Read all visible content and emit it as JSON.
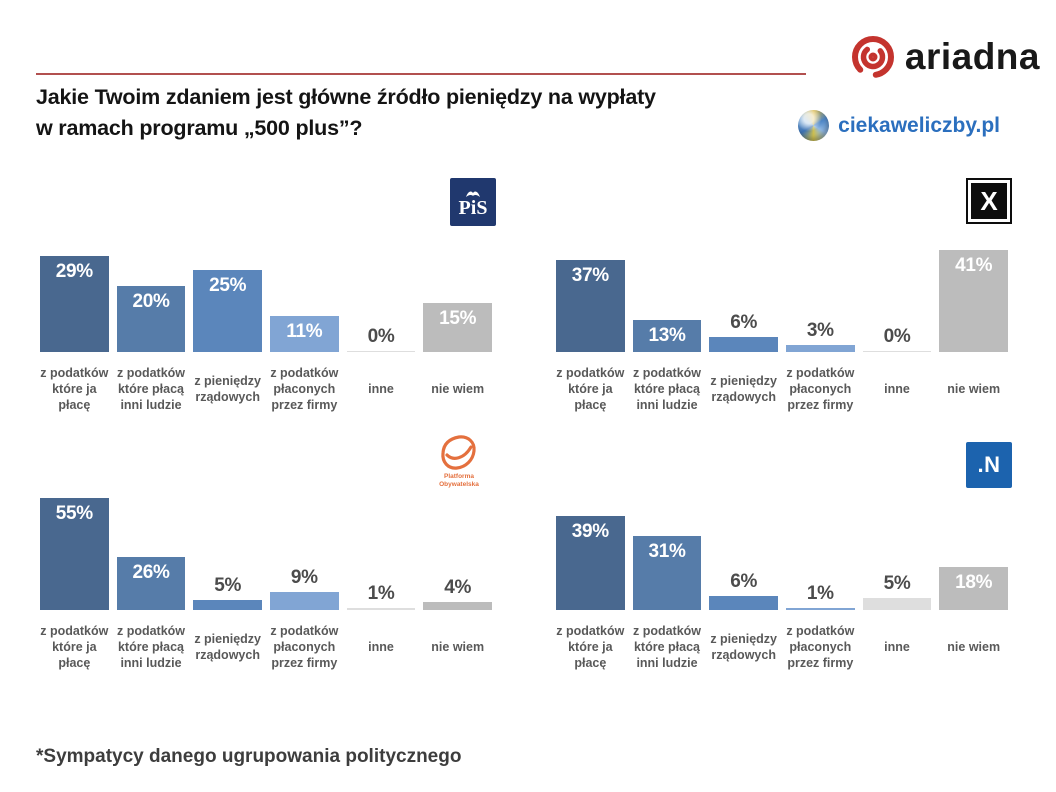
{
  "header": {
    "title": "Jakie Twoim zdaniem jest główne źródło pieniędzy na wypłaty\nw ramach programu „500 plus”?",
    "brand_ariadna": "ariadna",
    "brand_ciekaweliczby": "ciekaweliczby.pl"
  },
  "footnote": "*Sympatycy danego ugrupowania politycznego",
  "bar_colors": [
    "#49688f",
    "#567ca9",
    "#5b86bb",
    "#81a5d4",
    "#dedede",
    "#bcbcbc"
  ],
  "value_label_colors": {
    "inside": "#ffffff",
    "outside": "#4c4c4c"
  },
  "chart_data": [
    {
      "type": "bar",
      "party": "PiS",
      "logo_text": "PiS",
      "categories": [
        "z podatków\nktóre ja\npłacę",
        "z podatków\nktóre płacą\ninni ludzie",
        "z pieniędzy\nrządowych",
        "z podatków\npłaconych\nprzez firmy",
        "inne",
        "nie wiem"
      ],
      "values": [
        29,
        20,
        25,
        11,
        0,
        15
      ],
      "unit": "%"
    },
    {
      "type": "bar",
      "party": "Kukiz'15",
      "logo_text": "X",
      "categories": [
        "z podatków\nktóre ja\npłacę",
        "z podatków\nktóre płacą\ninni ludzie",
        "z pieniędzy\nrządowych",
        "z podatków\npłaconych\nprzez firmy",
        "inne",
        "nie wiem"
      ],
      "values": [
        37,
        13,
        6,
        3,
        0,
        41
      ],
      "unit": "%"
    },
    {
      "type": "bar",
      "party": "Platforma Obywatelska",
      "logo_text": "Platforma\nObywatelska",
      "categories": [
        "z podatków\nktóre ja\npłacę",
        "z podatków\nktóre płacą\ninni ludzie",
        "z pieniędzy\nrządowych",
        "z podatków\npłaconych\nprzez firmy",
        "inne",
        "nie wiem"
      ],
      "values": [
        55,
        26,
        5,
        9,
        1,
        4
      ],
      "unit": "%"
    },
    {
      "type": "bar",
      "party": "Nowoczesna",
      "logo_text": ".N",
      "categories": [
        "z podatków\nktóre ja\npłacę",
        "z podatków\nktóre płacą\ninni ludzie",
        "z pieniędzy\nrządowych",
        "z podatków\npłaconych\nprzez firmy",
        "inne",
        "nie wiem"
      ],
      "values": [
        39,
        31,
        6,
        1,
        5,
        18
      ],
      "unit": "%"
    }
  ]
}
